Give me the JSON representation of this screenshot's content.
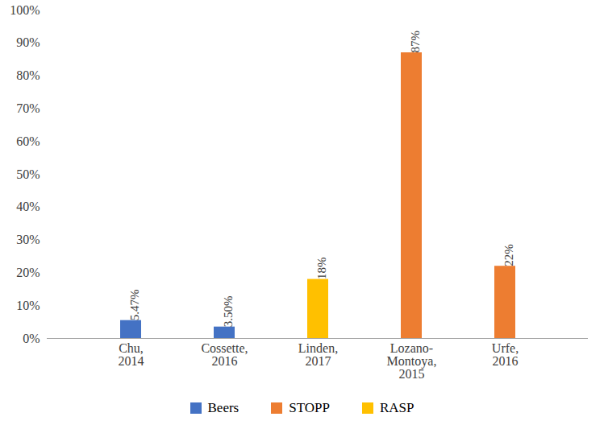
{
  "chart_data": {
    "type": "bar",
    "categories": [
      "Chu,\n2014",
      "Cossette,\n2016",
      "Linden,\n2017",
      "Lozano-\nMontoya,\n2015",
      "Urfe,\n2016"
    ],
    "series": [
      {
        "name": "Beers",
        "color": "#4472c4",
        "values": [
          5.47,
          3.5,
          null,
          null,
          null
        ],
        "value_labels": [
          "5.47%",
          "3.50%",
          null,
          null,
          null
        ]
      },
      {
        "name": "STOPP",
        "color": "#ed7d31",
        "values": [
          null,
          null,
          null,
          87,
          22
        ],
        "value_labels": [
          null,
          null,
          null,
          "87%",
          "22%"
        ]
      },
      {
        "name": "RASP",
        "color": "#ffc000",
        "values": [
          null,
          null,
          18,
          null,
          null
        ],
        "value_labels": [
          null,
          null,
          "18%",
          null,
          null
        ]
      }
    ],
    "ylim": [
      0,
      100
    ],
    "yticks": [
      {
        "value": 0,
        "label": "0%"
      },
      {
        "value": 10,
        "label": "10%"
      },
      {
        "value": 20,
        "label": "20%"
      },
      {
        "value": 30,
        "label": "30%"
      },
      {
        "value": 40,
        "label": "40%"
      },
      {
        "value": 50,
        "label": "50%"
      },
      {
        "value": 60,
        "label": "60%"
      },
      {
        "value": 70,
        "label": "70%"
      },
      {
        "value": 80,
        "label": "80%"
      },
      {
        "value": 90,
        "label": "90%"
      },
      {
        "value": 100,
        "label": "100%"
      }
    ],
    "grid": false,
    "data_labels": true,
    "legend": "bottom"
  }
}
